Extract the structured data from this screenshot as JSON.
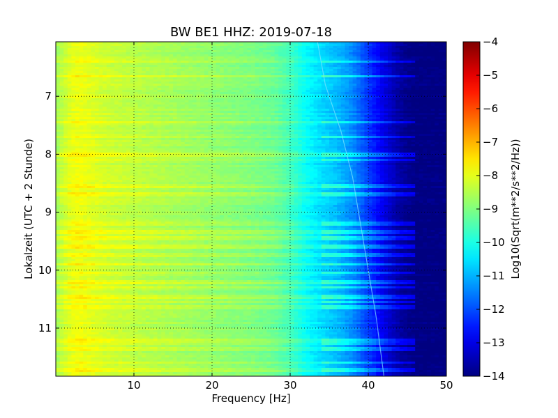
{
  "chart_data": {
    "type": "heatmap",
    "title": "BW BE1 HHZ: 2019-07-18",
    "xlabel": "Frequency [Hz]",
    "ylabel": "Lokalzeit (UTC + 2 Stunde)",
    "xlim": [
      0,
      50
    ],
    "ylim": [
      6.06,
      11.83
    ],
    "y_inverted": true,
    "x_ticks": [
      10,
      20,
      30,
      40,
      50
    ],
    "y_ticks": [
      7,
      8,
      9,
      10,
      11
    ],
    "grid": true,
    "colormap": "jet",
    "colorbar": {
      "label": "Log10(Sqrt(m**2/s**2/Hz))",
      "range": [
        -14,
        -4
      ],
      "ticks": [
        -4,
        -5,
        -6,
        -7,
        -8,
        -9,
        -10,
        -11,
        -12,
        -13,
        -14
      ]
    },
    "spectrum_profile": {
      "frequency_hz": [
        0,
        1,
        2,
        3,
        4,
        6,
        8,
        10,
        15,
        20,
        25,
        28,
        30,
        32,
        34,
        36,
        38,
        40,
        42,
        44,
        46,
        48,
        50
      ],
      "log10_psd": [
        -8.7,
        -8.3,
        -8.0,
        -7.9,
        -8.0,
        -8.2,
        -8.3,
        -8.4,
        -8.6,
        -8.8,
        -9.0,
        -9.2,
        -9.6,
        -10.2,
        -10.6,
        -10.9,
        -11.4,
        -12.2,
        -13.0,
        -13.7,
        -14.0,
        -14.0,
        -14.0
      ]
    },
    "elevated_bands_hours": [
      6.4,
      6.65,
      7.45,
      7.7,
      8.0,
      8.1,
      8.55,
      8.7,
      9.2,
      9.35,
      9.45,
      9.6,
      9.75,
      9.9,
      10.05,
      10.2,
      10.3,
      10.45,
      10.55,
      10.65,
      11.2,
      11.25,
      11.35,
      11.6,
      11.72
    ]
  }
}
